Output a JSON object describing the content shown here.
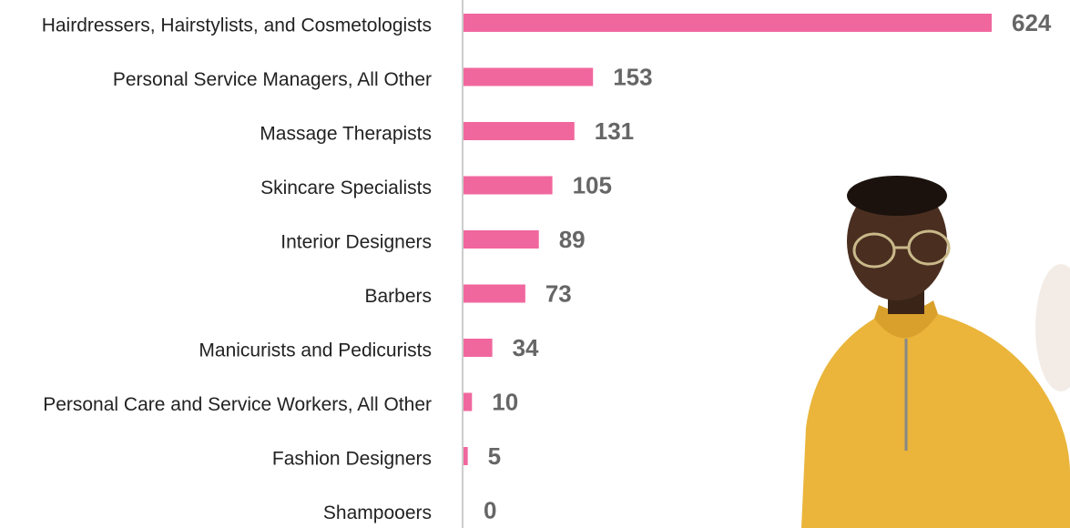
{
  "chart_data": {
    "type": "bar",
    "orientation": "horizontal",
    "categories": [
      "Hairdressers, Hairstylists, and Cosmetologists",
      "Personal Service Managers, All Other",
      "Massage Therapists",
      "Skincare Specialists",
      "Interior Designers",
      "Barbers",
      "Manicurists and Pedicurists",
      "Personal Care and Service Workers, All Other",
      "Fashion Designers",
      "Shampooers"
    ],
    "values": [
      624,
      153,
      131,
      105,
      89,
      73,
      34,
      10,
      5,
      0
    ],
    "color": "#f0679e"
  }
}
